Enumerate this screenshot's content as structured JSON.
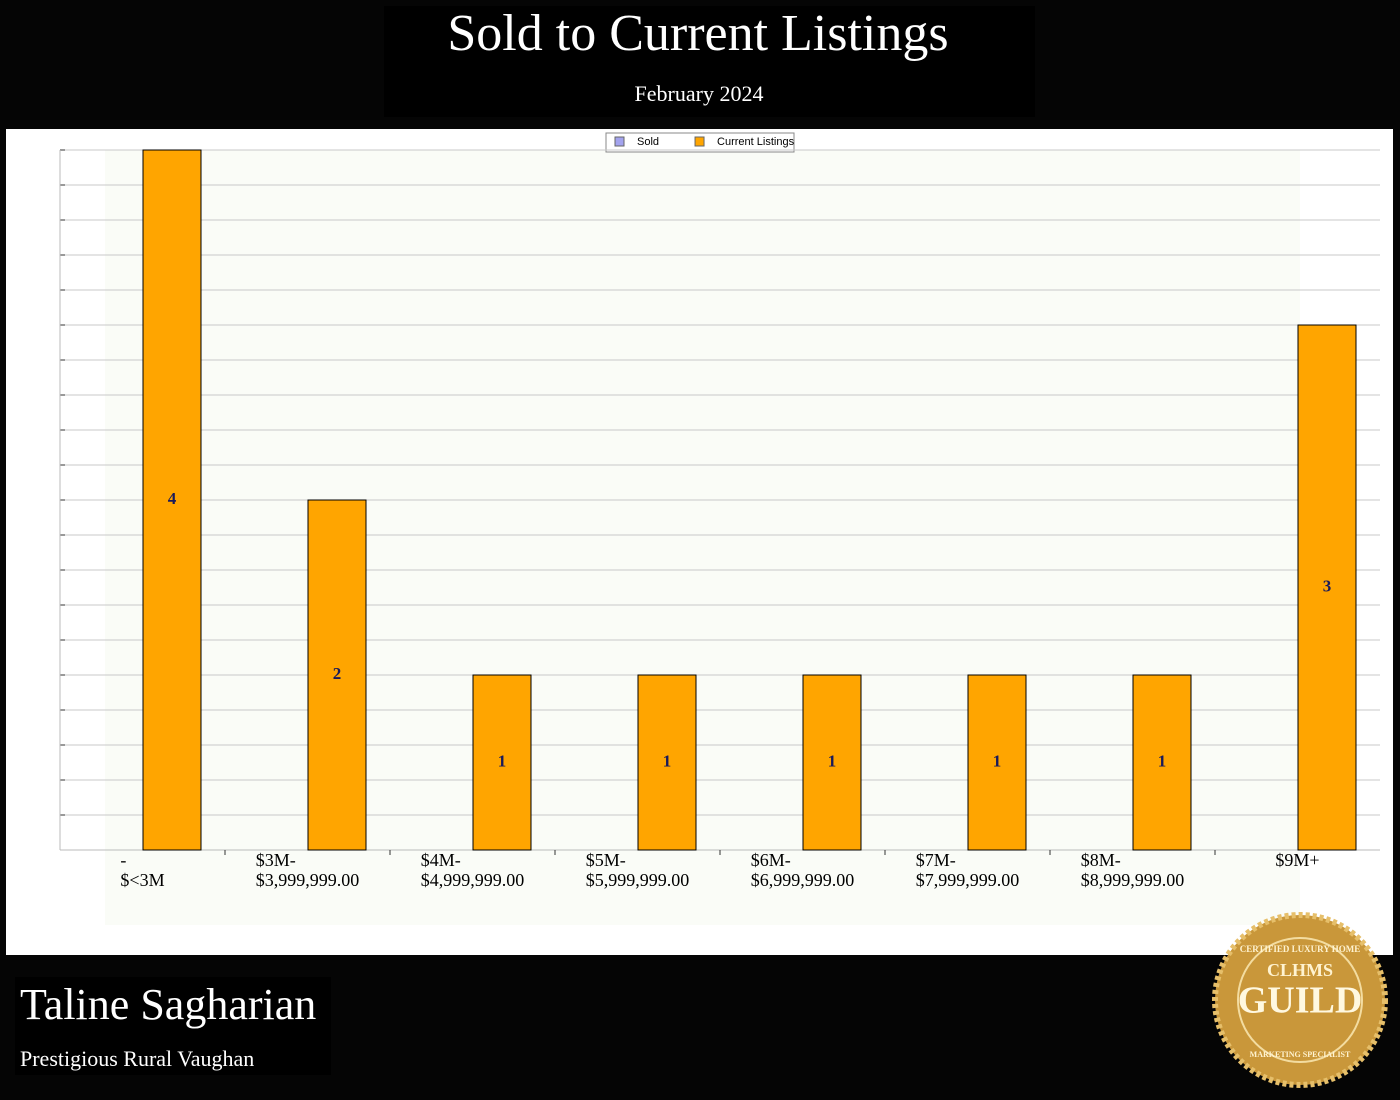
{
  "chart_data": {
    "type": "bar",
    "title": "Sold to Current Listings",
    "subtitle": "February 2024",
    "categories": [
      [
        "-",
        "$<3M"
      ],
      [
        "$3M-",
        "$3,999,999.00"
      ],
      [
        "$4M-",
        "$4,999,999.00"
      ],
      [
        "$5M-",
        "$5,999,999.00"
      ],
      [
        "$6M-",
        "$6,999,999.00"
      ],
      [
        "$7M-",
        "$7,999,999.00"
      ],
      [
        "$8M-",
        "$8,999,999.00"
      ],
      [
        "$9M+"
      ]
    ],
    "series": [
      {
        "name": "Sold",
        "color": "#a3a3ee",
        "values": [
          0,
          0,
          0,
          0,
          0,
          0,
          0,
          0
        ]
      },
      {
        "name": "Current Listings",
        "color": "#ffa500",
        "values": [
          4,
          2,
          1,
          1,
          1,
          1,
          1,
          3
        ]
      }
    ],
    "ylim": [
      0,
      4
    ],
    "yticks": [
      0,
      0.2,
      0.4,
      0.6,
      0.8,
      1,
      1.2,
      1.4,
      1.6,
      1.8,
      2,
      2.2,
      2.4,
      2.6,
      2.8,
      3,
      3.2,
      3.4,
      3.6,
      3.8,
      4
    ],
    "grid": true,
    "legend": "top"
  },
  "footer": {
    "name": "Taline Sagharian",
    "office": "Prestigious Rural Vaughan"
  },
  "badge": {
    "top": "CERTIFIED LUXURY HOME",
    "abbr": "CLHMS",
    "word": "GUILD",
    "bottom": "MARKETING SPECIALIST"
  }
}
